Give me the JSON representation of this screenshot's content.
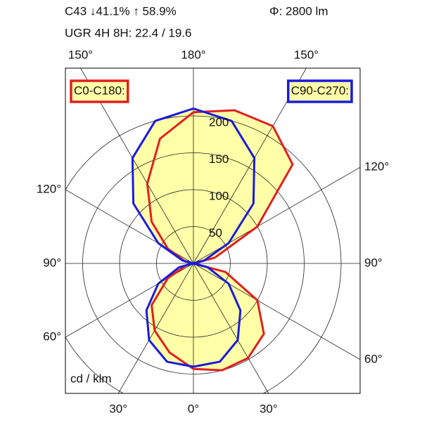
{
  "chart_data": {
    "type": "polar",
    "header": [
      "C43 ↓41.1% ↑ 58.9%",
      "Φ: 2800 lm",
      "UGR 4H 8H: 22.4 / 19.6"
    ],
    "unit_label": "cd / klm",
    "rlim": [
      0,
      200
    ],
    "rticks": [
      50,
      100,
      150,
      200
    ],
    "angle_ticks": [
      {
        "value": -150,
        "label": "150°"
      },
      {
        "value": 180,
        "label": "180°"
      },
      {
        "value": 150,
        "label": "150°"
      },
      {
        "value": 120,
        "label": "120°"
      },
      {
        "value": 90,
        "label": "90°"
      },
      {
        "value": 60,
        "label": "60°"
      },
      {
        "value": 30,
        "label": "30°"
      },
      {
        "value": 0,
        "label": "0°"
      },
      {
        "value": -30,
        "label": "30°"
      },
      {
        "value": -60,
        "label": "60°"
      },
      {
        "value": -90,
        "label": "90°"
      },
      {
        "value": -120,
        "label": "120°"
      }
    ],
    "angles": [
      -180,
      -165,
      -150,
      -135,
      -120,
      -105,
      -90,
      -75,
      -60,
      -45,
      -30,
      -15,
      0,
      15,
      30,
      45,
      60,
      75,
      90,
      105,
      120,
      135,
      150,
      165,
      180
    ],
    "fill": "#ffffa8",
    "series": [
      {
        "name": "C0-C180:",
        "color": "#e02020",
        "legend": "top-left",
        "values": [
          205,
          175,
          125,
          80,
          40,
          12,
          0,
          10,
          40,
          80,
          105,
          125,
          143,
          150,
          148,
          135,
          100,
          45,
          0,
          30,
          100,
          190,
          215,
          215,
          205
        ]
      },
      {
        "name": "C90-C270:",
        "color": "#1a1adc",
        "legend": "top-right",
        "values": [
          210,
          200,
          165,
          115,
          55,
          15,
          0,
          20,
          55,
          90,
          120,
          138,
          140,
          138,
          120,
          90,
          55,
          20,
          0,
          15,
          55,
          115,
          165,
          200,
          210
        ]
      }
    ]
  }
}
